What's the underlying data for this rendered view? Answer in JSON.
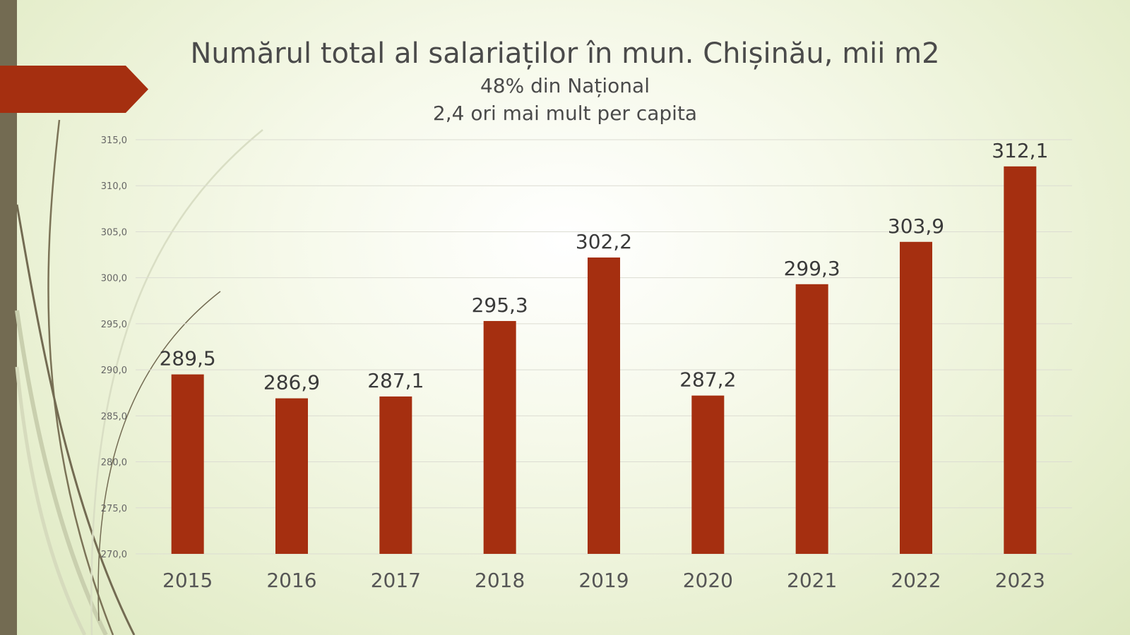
{
  "slide": {
    "title": "Numărul total al salariaților în mun. Chișinău, mii m2",
    "subtitle_line1": "48% din Național",
    "subtitle_line2": "2,4 ori mai mult per capita"
  },
  "colors": {
    "bar": "#a52f10",
    "accent": "#a52f10",
    "strip": "#736b52",
    "grid": "#dcdcd2"
  },
  "chart_data": {
    "type": "bar",
    "categories": [
      "2015",
      "2016",
      "2017",
      "2018",
      "2019",
      "2020",
      "2021",
      "2022",
      "2023"
    ],
    "values": [
      289.5,
      286.9,
      287.1,
      295.3,
      302.2,
      287.2,
      299.3,
      303.9,
      312.1
    ],
    "value_labels": [
      "289,5",
      "286,9",
      "287,1",
      "295,3",
      "302,2",
      "287,2",
      "299,3",
      "303,9",
      "312,1"
    ],
    "yticks": [
      270,
      275,
      280,
      285,
      290,
      295,
      300,
      305,
      310,
      315
    ],
    "ytick_labels": [
      "270,0",
      "275,0",
      "280,0",
      "285,0",
      "290,0",
      "295,0",
      "300,0",
      "305,0",
      "310,0",
      "315,0"
    ],
    "ylim": [
      270,
      315
    ],
    "grid": true,
    "legend": "none"
  }
}
